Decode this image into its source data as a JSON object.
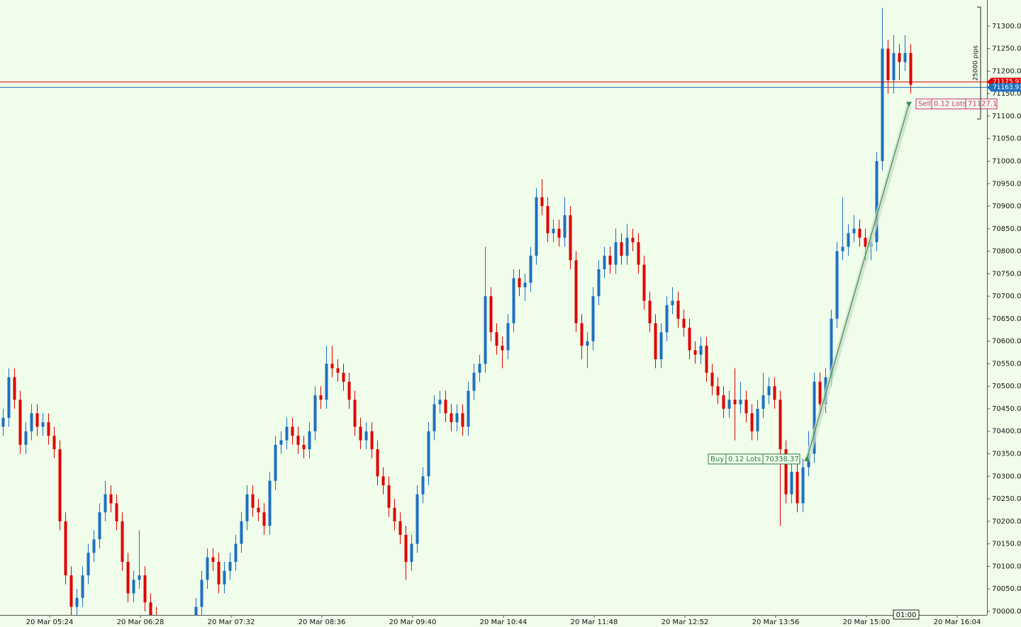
{
  "chart_data": {
    "type": "candlestick",
    "up_color": "#1e6fc0",
    "down_color": "#e00000",
    "ylim": [
      69992,
      71358
    ],
    "yticks": [
      {
        "value": 70000,
        "label": "70000.00"
      },
      {
        "value": 70050,
        "label": "70050.00"
      },
      {
        "value": 70100,
        "label": "70100.00"
      },
      {
        "value": 70150,
        "label": "70150.00"
      },
      {
        "value": 70200,
        "label": "70200.00"
      },
      {
        "value": 70250,
        "label": "70250.00"
      },
      {
        "value": 70300,
        "label": "70300.00"
      },
      {
        "value": 70350,
        "label": "70350.00"
      },
      {
        "value": 70400,
        "label": "70400.00"
      },
      {
        "value": 70450,
        "label": "70450.00"
      },
      {
        "value": 70500,
        "label": "70500.00"
      },
      {
        "value": 70550,
        "label": "70550.00"
      },
      {
        "value": 70600,
        "label": "70600.00"
      },
      {
        "value": 70650,
        "label": "70650.00"
      },
      {
        "value": 70700,
        "label": "70700.00"
      },
      {
        "value": 70750,
        "label": "70750.00"
      },
      {
        "value": 70800,
        "label": "70800.00"
      },
      {
        "value": 70850,
        "label": "70850.00"
      },
      {
        "value": 70900,
        "label": "70900.00"
      },
      {
        "value": 70950,
        "label": "70950.00"
      },
      {
        "value": 71000,
        "label": "71000.00"
      },
      {
        "value": 71050,
        "label": "71050.00"
      },
      {
        "value": 71100,
        "label": "71100.00"
      },
      {
        "value": 71150,
        "label": "71150.00"
      },
      {
        "value": 71200,
        "label": "71200.00"
      },
      {
        "value": 71250,
        "label": "71250.00"
      },
      {
        "value": 71300,
        "label": "71300.00"
      }
    ],
    "xlabels": [
      "20 Mar 05:24",
      "20 Mar 06:28",
      "20 Mar 07:32",
      "20 Mar 08:36",
      "20 Mar 09:40",
      "20 Mar 10:44",
      "20 Mar 11:48",
      "20 Mar 12:52",
      "20 Mar 13:56",
      "20 Mar 15:00",
      "20 Mar 16:04"
    ],
    "price_lines": [
      {
        "value": 71175.91,
        "color": "#e00000"
      },
      {
        "value": 71163.91,
        "color": "#1e6fc0"
      }
    ],
    "buy": {
      "side": "Buy",
      "lots": "0.12 Lots",
      "price": 70338.37
    },
    "sell": {
      "side": "Sell",
      "lots": "0.12 Lots",
      "price": 71127.1
    },
    "measure": "25000 pips",
    "timer": "01:00",
    "ohlc": [
      [
        70410,
        70450,
        70390,
        70430
      ],
      [
        70430,
        70540,
        70410,
        70520
      ],
      [
        70520,
        70540,
        70450,
        70470
      ],
      [
        70470,
        70490,
        70350,
        70370
      ],
      [
        70370,
        70420,
        70350,
        70400
      ],
      [
        70400,
        70460,
        70380,
        70440
      ],
      [
        70440,
        70460,
        70390,
        70410
      ],
      [
        70410,
        70440,
        70390,
        70420
      ],
      [
        70420,
        70440,
        70370,
        70390
      ],
      [
        70390,
        70410,
        70340,
        70360
      ],
      [
        70360,
        70380,
        70180,
        70200
      ],
      [
        70200,
        70220,
        70060,
        70080
      ],
      [
        70080,
        70100,
        69990,
        70010
      ],
      [
        70010,
        70050,
        69990,
        70030
      ],
      [
        70030,
        70100,
        70010,
        70080
      ],
      [
        70080,
        70150,
        70060,
        70130
      ],
      [
        70130,
        70180,
        70110,
        70160
      ],
      [
        70160,
        70240,
        70140,
        70220
      ],
      [
        70220,
        70290,
        70200,
        70260
      ],
      [
        70260,
        70280,
        70220,
        70240
      ],
      [
        70240,
        70260,
        70180,
        70200
      ],
      [
        70200,
        70220,
        70090,
        70110
      ],
      [
        70110,
        70130,
        70020,
        70040
      ],
      [
        70040,
        70090,
        70020,
        70070
      ],
      [
        70070,
        70180,
        70050,
        70080
      ],
      [
        70080,
        70100,
        70000,
        70020
      ],
      [
        70020,
        70040,
        69970,
        69990
      ],
      [
        69990,
        70010,
        69930,
        69950
      ],
      [
        69950,
        69970,
        69910,
        69930
      ],
      [
        69930,
        69950,
        69900,
        69920
      ],
      [
        69920,
        69960,
        69900,
        69940
      ],
      [
        69940,
        69960,
        69910,
        69930
      ],
      [
        69930,
        69970,
        69910,
        69950
      ],
      [
        69950,
        69990,
        69930,
        69970
      ],
      [
        69970,
        70030,
        69950,
        70010
      ],
      [
        70010,
        70090,
        69990,
        70070
      ],
      [
        70070,
        70140,
        70050,
        70120
      ],
      [
        70120,
        70140,
        70090,
        70110
      ],
      [
        70110,
        70130,
        70040,
        70060
      ],
      [
        70060,
        70110,
        70040,
        70090
      ],
      [
        70090,
        70130,
        70070,
        70110
      ],
      [
        70110,
        70170,
        70090,
        70150
      ],
      [
        70150,
        70220,
        70130,
        70200
      ],
      [
        70200,
        70280,
        70180,
        70260
      ],
      [
        70260,
        70280,
        70210,
        70230
      ],
      [
        70230,
        70250,
        70200,
        70220
      ],
      [
        70220,
        70240,
        70170,
        70190
      ],
      [
        70190,
        70310,
        70170,
        70290
      ],
      [
        70290,
        70390,
        70270,
        70370
      ],
      [
        70370,
        70400,
        70350,
        70380
      ],
      [
        70380,
        70430,
        70360,
        70410
      ],
      [
        70410,
        70430,
        70370,
        70390
      ],
      [
        70390,
        70410,
        70350,
        70370
      ],
      [
        70370,
        70390,
        70340,
        70360
      ],
      [
        70360,
        70420,
        70340,
        70400
      ],
      [
        70400,
        70500,
        70380,
        70480
      ],
      [
        70480,
        70500,
        70450,
        70470
      ],
      [
        70470,
        70590,
        70450,
        70550
      ],
      [
        70550,
        70590,
        70520,
        70540
      ],
      [
        70540,
        70560,
        70510,
        70530
      ],
      [
        70530,
        70550,
        70490,
        70510
      ],
      [
        70510,
        70530,
        70450,
        70470
      ],
      [
        70470,
        70490,
        70390,
        70410
      ],
      [
        70410,
        70430,
        70360,
        70380
      ],
      [
        70380,
        70420,
        70360,
        70400
      ],
      [
        70400,
        70420,
        70340,
        70360
      ],
      [
        70360,
        70380,
        70280,
        70300
      ],
      [
        70300,
        70320,
        70260,
        70280
      ],
      [
        70280,
        70300,
        70210,
        70230
      ],
      [
        70230,
        70250,
        70180,
        70200
      ],
      [
        70200,
        70220,
        70150,
        70170
      ],
      [
        70170,
        70190,
        70070,
        70110
      ],
      [
        70110,
        70170,
        70090,
        70150
      ],
      [
        70150,
        70280,
        70130,
        70260
      ],
      [
        70260,
        70320,
        70240,
        70300
      ],
      [
        70300,
        70420,
        70280,
        70400
      ],
      [
        70400,
        70480,
        70380,
        70460
      ],
      [
        70460,
        70490,
        70440,
        70470
      ],
      [
        70470,
        70490,
        70420,
        70440
      ],
      [
        70440,
        70460,
        70400,
        70420
      ],
      [
        70420,
        70460,
        70400,
        70440
      ],
      [
        70440,
        70460,
        70390,
        70410
      ],
      [
        70410,
        70510,
        70390,
        70490
      ],
      [
        70490,
        70550,
        70470,
        70530
      ],
      [
        70530,
        70570,
        70510,
        70550
      ],
      [
        70550,
        70810,
        70530,
        70700
      ],
      [
        70700,
        70720,
        70600,
        70620
      ],
      [
        70620,
        70640,
        70570,
        70590
      ],
      [
        70590,
        70610,
        70540,
        70580
      ],
      [
        70580,
        70660,
        70560,
        70640
      ],
      [
        70640,
        70760,
        70620,
        70740
      ],
      [
        70740,
        70760,
        70700,
        70720
      ],
      [
        70720,
        70750,
        70690,
        70730
      ],
      [
        70730,
        70810,
        70710,
        70790
      ],
      [
        70790,
        70940,
        70770,
        70920
      ],
      [
        70920,
        70960,
        70880,
        70900
      ],
      [
        70900,
        70920,
        70820,
        70840
      ],
      [
        70840,
        70870,
        70820,
        70850
      ],
      [
        70850,
        70870,
        70810,
        70830
      ],
      [
        70830,
        70920,
        70810,
        70880
      ],
      [
        70880,
        70900,
        70760,
        70780
      ],
      [
        70780,
        70800,
        70620,
        70640
      ],
      [
        70640,
        70660,
        70560,
        70590
      ],
      [
        70590,
        70620,
        70540,
        70600
      ],
      [
        70600,
        70720,
        70580,
        70700
      ],
      [
        70700,
        70780,
        70680,
        70760
      ],
      [
        70760,
        70810,
        70740,
        70790
      ],
      [
        70790,
        70810,
        70750,
        70770
      ],
      [
        70770,
        70850,
        70750,
        70820
      ],
      [
        70820,
        70840,
        70770,
        70790
      ],
      [
        70790,
        70860,
        70770,
        70830
      ],
      [
        70830,
        70850,
        70800,
        70820
      ],
      [
        70820,
        70840,
        70750,
        70770
      ],
      [
        70770,
        70790,
        70670,
        70690
      ],
      [
        70690,
        70710,
        70620,
        70640
      ],
      [
        70640,
        70660,
        70540,
        70560
      ],
      [
        70560,
        70640,
        70540,
        70620
      ],
      [
        70620,
        70700,
        70600,
        70680
      ],
      [
        70680,
        70720,
        70660,
        70690
      ],
      [
        70690,
        70710,
        70630,
        70650
      ],
      [
        70650,
        70670,
        70610,
        70630
      ],
      [
        70630,
        70650,
        70560,
        70580
      ],
      [
        70580,
        70600,
        70550,
        70570
      ],
      [
        70570,
        70610,
        70550,
        70590
      ],
      [
        70590,
        70610,
        70510,
        70530
      ],
      [
        70530,
        70550,
        70480,
        70500
      ],
      [
        70500,
        70520,
        70460,
        70480
      ],
      [
        70480,
        70500,
        70430,
        70450
      ],
      [
        70450,
        70490,
        70430,
        70470
      ],
      [
        70470,
        70540,
        70380,
        70460
      ],
      [
        70460,
        70510,
        70440,
        70470
      ],
      [
        70470,
        70490,
        70420,
        70440
      ],
      [
        70440,
        70460,
        70380,
        70400
      ],
      [
        70400,
        70470,
        70380,
        70450
      ],
      [
        70450,
        70530,
        70430,
        70480
      ],
      [
        70480,
        70520,
        70460,
        70500
      ],
      [
        70500,
        70520,
        70450,
        70470
      ],
      [
        70470,
        70490,
        70190,
        70360
      ],
      [
        70360,
        70380,
        70240,
        70260
      ],
      [
        70260,
        70330,
        70240,
        70310
      ],
      [
        70310,
        70330,
        70220,
        70240
      ],
      [
        70240,
        70340,
        70220,
        70320
      ],
      [
        70320,
        70400,
        70300,
        70350
      ],
      [
        70350,
        70530,
        70330,
        70510
      ],
      [
        70510,
        70530,
        70440,
        70460
      ],
      [
        70460,
        70540,
        70440,
        70520
      ],
      [
        70520,
        70670,
        70500,
        70650
      ],
      [
        70650,
        70820,
        70630,
        70800
      ],
      [
        70800,
        70920,
        70780,
        70810
      ],
      [
        70810,
        70860,
        70790,
        70840
      ],
      [
        70840,
        70880,
        70820,
        70850
      ],
      [
        70850,
        70870,
        70810,
        70830
      ],
      [
        70830,
        70850,
        70780,
        70810
      ],
      [
        70810,
        70840,
        70780,
        70820
      ],
      [
        70820,
        71020,
        70800,
        71000
      ],
      [
        71000,
        71340,
        70980,
        71250
      ],
      [
        71250,
        71270,
        71150,
        71180
      ],
      [
        71180,
        71280,
        71150,
        71240
      ],
      [
        71240,
        71260,
        71180,
        71220
      ],
      [
        71220,
        71280,
        71200,
        71240
      ],
      [
        71240,
        71260,
        71150,
        71170
      ]
    ]
  }
}
